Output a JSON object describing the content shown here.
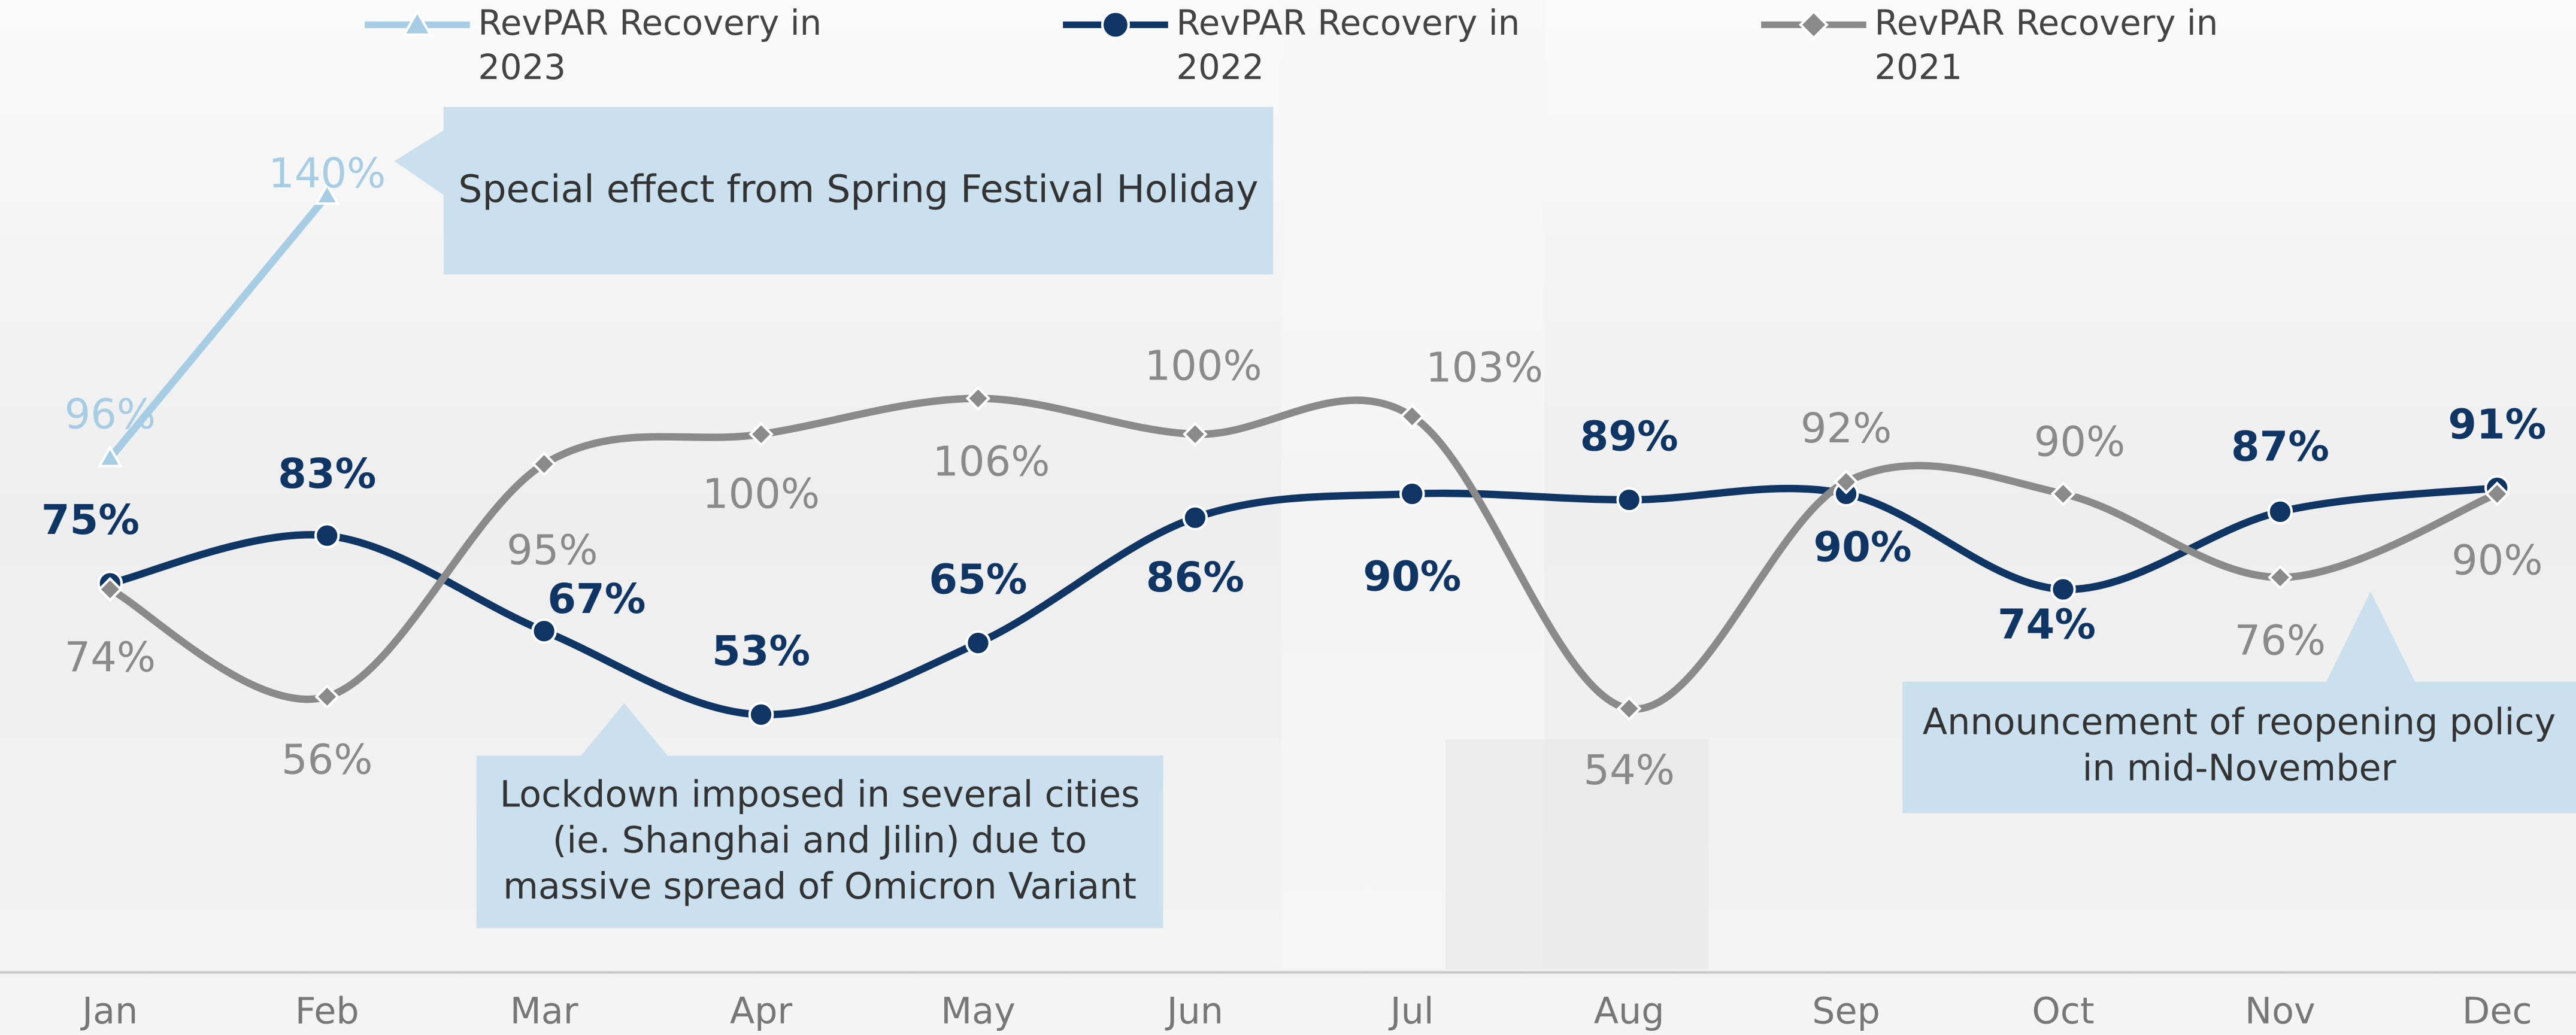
{
  "chart_data": {
    "type": "line",
    "categories": [
      "Jan",
      "Feb",
      "Mar",
      "Apr",
      "May",
      "Jun",
      "Jul",
      "Aug",
      "Sep",
      "Oct",
      "Nov",
      "Dec"
    ],
    "series": [
      {
        "name": "RevPAR Recovery in 2023",
        "color": "#a6cde4",
        "marker": "triangle",
        "values": [
          96,
          140,
          null,
          null,
          null,
          null,
          null,
          null,
          null,
          null,
          null,
          null
        ],
        "value_labels": [
          "96%",
          "140%",
          null,
          null,
          null,
          null,
          null,
          null,
          null,
          null,
          null,
          null
        ]
      },
      {
        "name": "RevPAR Recovery in 2022",
        "color": "#0e3563",
        "marker": "circle",
        "values": [
          75,
          83,
          67,
          53,
          65,
          86,
          90,
          89,
          90,
          74,
          87,
          91
        ],
        "value_labels": [
          "75%",
          "83%",
          "67%",
          "53%",
          "65%",
          "86%",
          "90%",
          "89%",
          "90%",
          "74%",
          "87%",
          "91%"
        ]
      },
      {
        "name": "RevPAR Recovery in 2021",
        "color": "#8a8a8a",
        "marker": "diamond",
        "values": [
          74,
          56,
          95,
          100,
          106,
          100,
          103,
          54,
          92,
          90,
          76,
          90
        ],
        "value_labels": [
          "74%",
          "56%",
          "95%",
          "100%",
          "106%",
          "100%",
          "103%",
          "54%",
          "92%",
          "90%",
          "76%",
          "90%"
        ]
      }
    ],
    "annotations": [
      {
        "text": "Special effect from Spring Festival Holiday"
      },
      {
        "text": "Lockdown imposed in several cities (ie. Shanghai and Jilin) due to massive spread of Omicron Variant"
      },
      {
        "text": "Announcement of reopening policy in mid-November"
      }
    ],
    "legend": "top",
    "smooth": true
  }
}
